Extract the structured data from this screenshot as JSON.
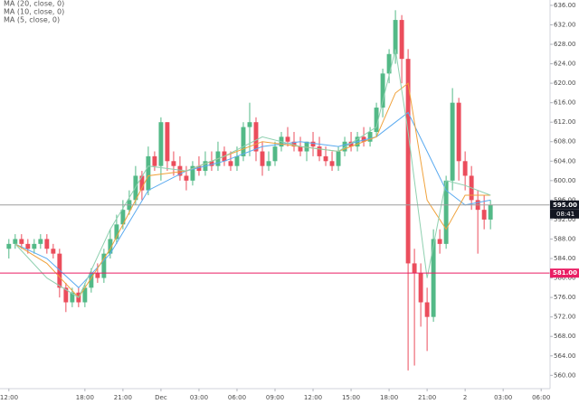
{
  "chart_data": {
    "type": "candlestick",
    "legend_items": [
      {
        "name": "MA (20, close, 0)",
        "color": "#5aaaf0"
      },
      {
        "name": "MA (10, close, 0)",
        "color": "#f0a23c"
      },
      {
        "name": "MA (5, close, 0)",
        "color": "#8fd0b0"
      }
    ],
    "up_color": "#53b987",
    "down_color": "#eb4d5c",
    "x": [
      0,
      0.5,
      1,
      1.5,
      2,
      2.5,
      3,
      3.5,
      4,
      4.5,
      5,
      5.5,
      6,
      6.5,
      7,
      7.5,
      8,
      8.5,
      9,
      9.5,
      10,
      10.5,
      11,
      11.5,
      12,
      12.5,
      13,
      13.5,
      14,
      14.5,
      15,
      15.5,
      16,
      16.5,
      17,
      17.5,
      18,
      18.5,
      19,
      19.5,
      20,
      20.5,
      21,
      21.5,
      22,
      22.5,
      23,
      23.5,
      24,
      24.5,
      25,
      25.5,
      26,
      26.5,
      27,
      27.5,
      28,
      28.5,
      29,
      29.5,
      30,
      30.5,
      31,
      31.5,
      32,
      32.5,
      33,
      33.5,
      34,
      34.5,
      35,
      35.5,
      36,
      36.5,
      37,
      37.5,
      38
    ],
    "open": [
      586,
      587,
      588,
      587,
      586,
      587,
      588,
      586,
      585,
      578,
      575,
      577,
      575,
      578,
      581,
      580,
      585,
      588,
      591,
      594,
      596,
      601,
      598,
      605,
      603,
      612,
      604,
      603,
      601,
      600,
      603,
      602,
      604,
      603,
      606,
      604,
      603,
      605,
      611,
      612,
      606,
      603,
      604,
      607,
      609,
      608,
      607,
      606,
      608,
      607,
      605,
      604,
      603,
      606,
      608,
      607,
      609,
      608,
      610,
      615,
      622,
      626,
      633,
      625,
      583,
      581,
      575,
      572,
      588,
      587,
      600,
      616,
      604,
      601,
      596,
      594,
      592
    ],
    "high": [
      588,
      589,
      589,
      588,
      588,
      589,
      589,
      587,
      586,
      579,
      578,
      578,
      579,
      582,
      583,
      586,
      590,
      593,
      596,
      598,
      603,
      602,
      607,
      606,
      613,
      612,
      606,
      605,
      603,
      604,
      605,
      606,
      606,
      608,
      607,
      606,
      607,
      612,
      616,
      613,
      608,
      606,
      608,
      610,
      611,
      610,
      609,
      608,
      610,
      609,
      607,
      606,
      607,
      609,
      610,
      610,
      611,
      611,
      616,
      623,
      627,
      635,
      634,
      627,
      586,
      583,
      578,
      590,
      590,
      601,
      619,
      617,
      606,
      603,
      598,
      597,
      596
    ],
    "low": [
      584,
      586,
      586,
      585,
      585,
      586,
      585,
      584,
      576,
      573,
      574,
      574,
      574,
      577,
      579,
      579,
      584,
      587,
      590,
      593,
      595,
      596,
      597,
      602,
      600,
      602,
      601,
      600,
      598,
      599,
      601,
      601,
      602,
      602,
      603,
      602,
      602,
      604,
      605,
      604,
      601,
      602,
      603,
      606,
      607,
      606,
      605,
      604,
      605,
      604,
      603,
      602,
      602,
      605,
      606,
      606,
      607,
      607,
      609,
      613,
      620,
      624,
      620,
      561,
      562,
      570,
      565,
      571,
      585,
      586,
      598,
      600,
      598,
      594,
      585,
      590,
      590
    ],
    "close": [
      587,
      588,
      587,
      586,
      587,
      588,
      586,
      585,
      578,
      575,
      577,
      575,
      578,
      581,
      580,
      585,
      588,
      591,
      594,
      596,
      601,
      598,
      605,
      603,
      612,
      604,
      603,
      601,
      600,
      603,
      602,
      604,
      603,
      606,
      604,
      603,
      605,
      611,
      612,
      606,
      603,
      604,
      607,
      609,
      608,
      607,
      606,
      608,
      607,
      605,
      604,
      603,
      606,
      608,
      607,
      609,
      608,
      610,
      615,
      622,
      626,
      633,
      625,
      583,
      581,
      575,
      572,
      588,
      587,
      600,
      616,
      604,
      601,
      596,
      594,
      592,
      595
    ],
    "ma_lines": [
      {
        "name": "MA (20, close, 0)",
        "color": "#5aaaf0",
        "x": [
          0.5,
          3,
          5.5,
          8,
          11,
          14,
          17,
          20,
          23,
          26,
          29,
          30.5,
          31.5,
          33,
          34.5,
          36,
          38
        ],
        "values": [
          587,
          584,
          578,
          585,
          598,
          602,
          604,
          607,
          608,
          607,
          609,
          612,
          614,
          606,
          598,
          595,
          596
        ]
      },
      {
        "name": "MA (10, close, 0)",
        "color": "#f0a23c",
        "x": [
          0.5,
          3,
          5.5,
          8,
          11,
          14,
          17,
          20,
          23,
          26,
          29,
          30.5,
          31.5,
          33,
          34.5,
          36,
          38
        ],
        "values": [
          587,
          583,
          576,
          586,
          601,
          602,
          605,
          608,
          607,
          606,
          609,
          618,
          620,
          596,
          590,
          597,
          597
        ]
      },
      {
        "name": "MA (5, close, 0)",
        "color": "#8fd0b0",
        "x": [
          0.5,
          3,
          5.5,
          8,
          11,
          14,
          17,
          20,
          23,
          26,
          29,
          30.5,
          31.5,
          33,
          34.5,
          36,
          38
        ],
        "values": [
          587,
          580,
          576,
          590,
          603,
          602,
          605,
          609,
          607,
          606,
          611,
          627,
          610,
          580,
          600,
          599,
          597
        ]
      }
    ],
    "price_lines": [
      {
        "value": 595,
        "label": "595.00",
        "color": "#9e9e9e",
        "box": "#131722"
      },
      {
        "value": 581,
        "label": "581.00",
        "color": "#e91e63",
        "box": "#e91e63"
      }
    ],
    "countdown": "08:41",
    "xlim": [
      -0.7,
      42.7
    ],
    "ylim": [
      558.2,
      637.1
    ],
    "xticks": [
      {
        "value": 0,
        "label": "12:00"
      },
      {
        "value": 6,
        "label": "18:00"
      },
      {
        "value": 9,
        "label": "21:00"
      },
      {
        "value": 12,
        "label": "Dec"
      },
      {
        "value": 15,
        "label": "03:00"
      },
      {
        "value": 18,
        "label": "06:00"
      },
      {
        "value": 21,
        "label": "09:00"
      },
      {
        "value": 24,
        "label": "12:00"
      },
      {
        "value": 27,
        "label": "15:00"
      },
      {
        "value": 30,
        "label": "18:00"
      },
      {
        "value": 33,
        "label": "21:00"
      },
      {
        "value": 36,
        "label": "2"
      },
      {
        "value": 39,
        "label": "03:00"
      },
      {
        "value": 42,
        "label": "06:00"
      }
    ],
    "yticks": [
      {
        "value": 636,
        "label": "636.00"
      },
      {
        "value": 632,
        "label": "632.00"
      },
      {
        "value": 628,
        "label": "628.00"
      },
      {
        "value": 624,
        "label": "624.00"
      },
      {
        "value": 620,
        "label": "620.00"
      },
      {
        "value": 616,
        "label": "616.00"
      },
      {
        "value": 612,
        "label": "612.00"
      },
      {
        "value": 608,
        "label": "608.00"
      },
      {
        "value": 604,
        "label": "604.00"
      },
      {
        "value": 600,
        "label": "600.00"
      },
      {
        "value": 596,
        "label": "596.00"
      },
      {
        "value": 592,
        "label": "592.00"
      },
      {
        "value": 588,
        "label": "588.00"
      },
      {
        "value": 584,
        "label": "584.00"
      },
      {
        "value": 580,
        "label": "580.00"
      },
      {
        "value": 576,
        "label": "576.00"
      },
      {
        "value": 572,
        "label": "572.00"
      },
      {
        "value": 568,
        "label": "568.00"
      },
      {
        "value": 564,
        "label": "564.00"
      },
      {
        "value": 560,
        "label": "560.00"
      }
    ],
    "grid": false
  }
}
